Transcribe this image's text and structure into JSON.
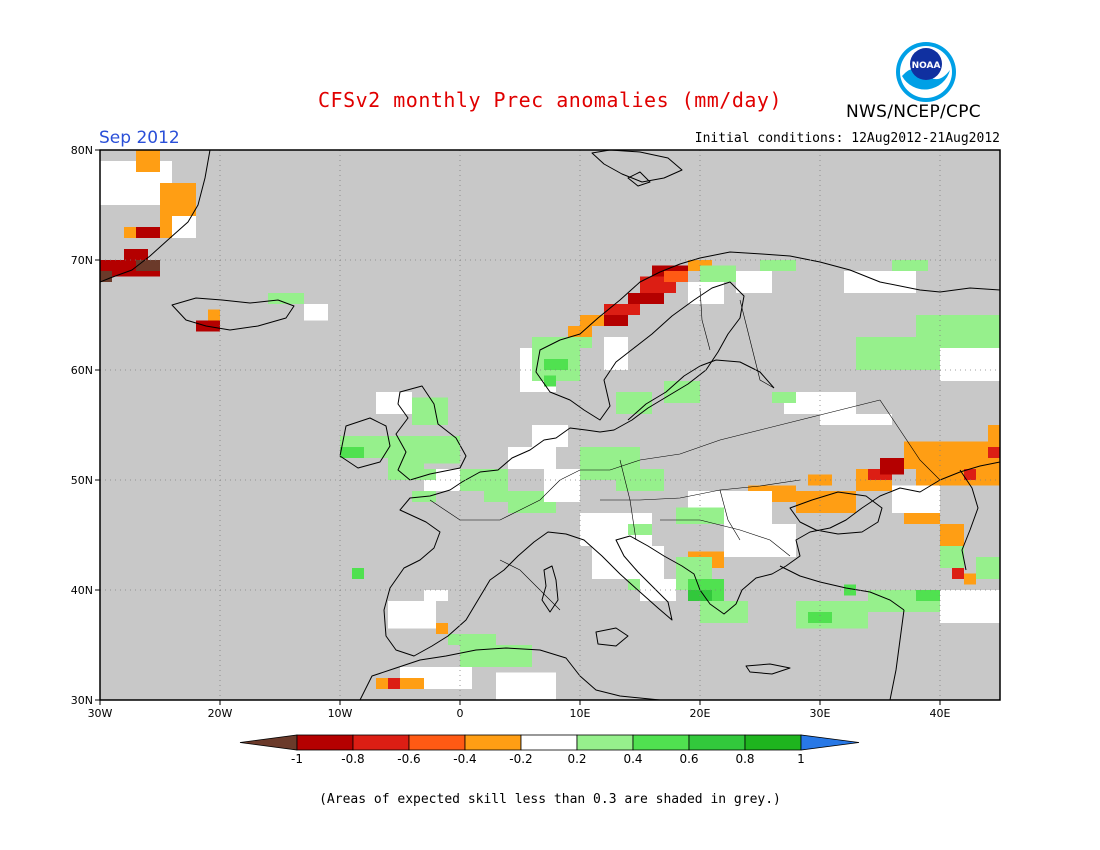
{
  "title": "CFSv2 monthly Prec anomalies (mm/day)",
  "org": "NWS/NCEP/CPC",
  "logo_text": "NOAA",
  "month": "Sep 2012",
  "initial_conditions": "Initial conditions: 12Aug2012-21Aug2012",
  "footnote": "(Areas of expected skill less than 0.3 are shaded in grey.)",
  "map": {
    "lon_range": [
      -30,
      45
    ],
    "lat_range": [
      30,
      80
    ],
    "lat_labels": [
      "30N",
      "40N",
      "50N",
      "60N",
      "70N",
      "80N"
    ],
    "lon_labels": [
      "30W",
      "20W",
      "10W",
      "0",
      "10E",
      "20E",
      "30E",
      "40E"
    ],
    "grid": "dotted",
    "background_color": "#c8c8c8"
  },
  "colorbar": {
    "labels": [
      "-1",
      "-0.8",
      "-0.6",
      "-0.4",
      "-0.2",
      "0.2",
      "0.4",
      "0.6",
      "0.8",
      "1"
    ],
    "colors": [
      "#6b3a2a",
      "#b40000",
      "#dc1e14",
      "#ff5a14",
      "#ff9e14",
      "#ffffff",
      "#96f08c",
      "#50e150",
      "#32c83c",
      "#1eb41e",
      "#2878e6"
    ]
  }
}
